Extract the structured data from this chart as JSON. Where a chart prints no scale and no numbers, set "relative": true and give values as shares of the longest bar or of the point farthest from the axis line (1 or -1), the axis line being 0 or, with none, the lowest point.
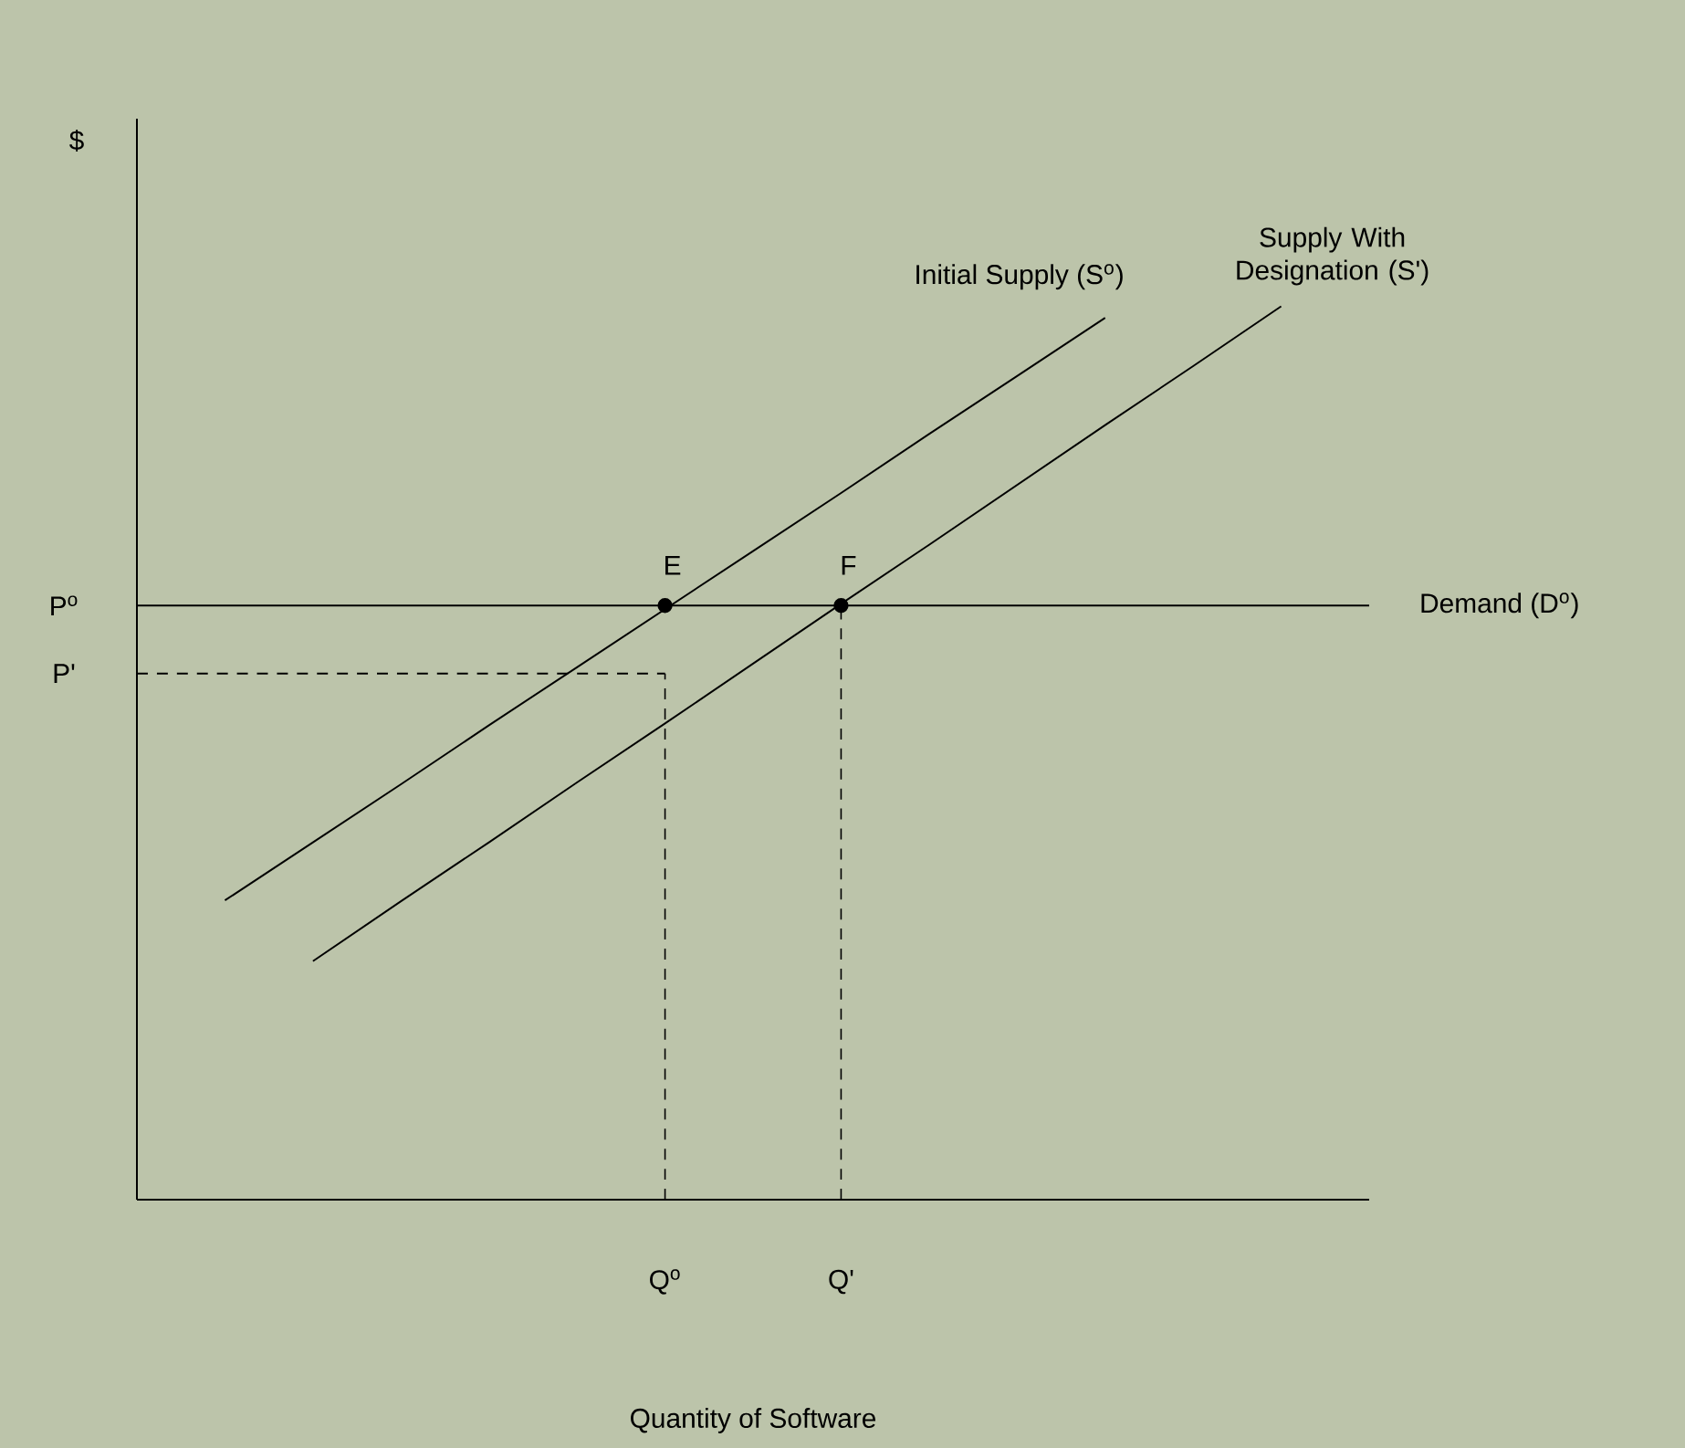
{
  "chart_data": {
    "type": "line",
    "relative": true,
    "xlabel": "Quantity of Software",
    "categories": [
      null,
      null,
      null,
      null,
      null,
      null,
      "Q$^{o}$",
      null,
      "Q'",
      null,
      null,
      null,
      null,
      null,
      null
    ],
    "grid": false,
    "line_style": "solid",
    "marker": "none",
    "series": [
      {
        "name": "Initial Supply (S$^{o}$)",
        "color": "#000000",
        "values": [
          null,
          0.335,
          0.4,
          0.465,
          0.531,
          0.596,
          0.661,
          0.726,
          0.791,
          0.857,
          0.922,
          0.987,
          null,
          null,
          null
        ]
      },
      {
        "name": "Supply With Designation (S')",
        "color": "#000000",
        "values": [
          null,
          null,
          0.267,
          0.334,
          0.4,
          0.467,
          0.533,
          0.6,
          0.667,
          0.733,
          0.8,
          0.867,
          0.933,
          1.0,
          null
        ]
      },
      {
        "name": "Demand (D$^{o}$)",
        "color": "#000000",
        "values": [
          0.665,
          0.665,
          0.665,
          0.665,
          0.665,
          0.665,
          0.665,
          0.665,
          0.665,
          0.665,
          0.665,
          0.665,
          0.665,
          0.665,
          0.665
        ]
      },
      {
        "type": "line",
        "line_style": "dashed",
        "color": "#000000",
        "values": [
          0.589,
          0.589,
          0.589,
          0.589,
          0.589,
          0.589,
          0.589,
          null,
          null,
          null,
          null,
          null,
          null,
          null,
          null
        ]
      },
      {
        "type": "scatter",
        "marker": "circle",
        "color": "#000000",
        "values": [
          null,
          null,
          null,
          null,
          null,
          null,
          0.665,
          null,
          0.665,
          null,
          null,
          null,
          null,
          null,
          null
        ]
      }
    ],
    "annotations": [
      "$",
      "P$^{o}$",
      "P'",
      "E",
      "F"
    ]
  }
}
